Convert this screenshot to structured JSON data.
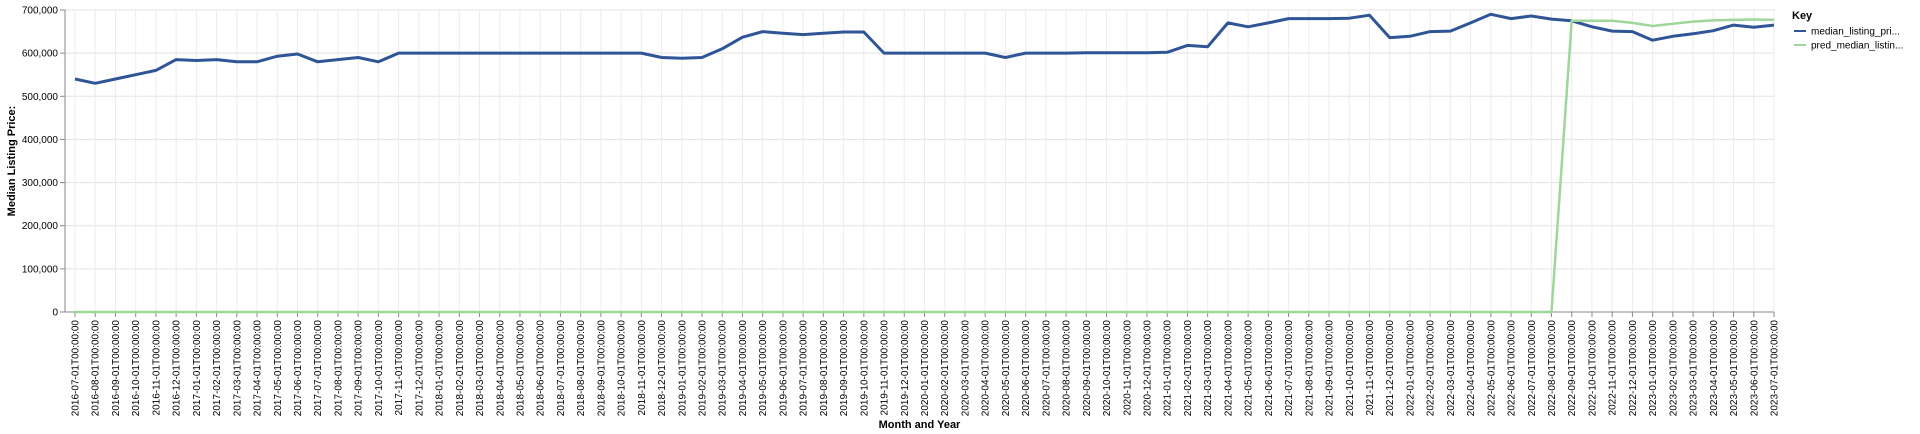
{
  "chart_data": {
    "type": "line",
    "xlabel": "Month and Year",
    "ylabel": "Median Listing Price:",
    "ylim": [
      0,
      700000
    ],
    "yticks": [
      0,
      100000,
      200000,
      300000,
      400000,
      500000,
      600000,
      700000
    ],
    "ytick_labels": [
      "0",
      "100,000",
      "200,000",
      "300,000",
      "400,000",
      "500,000",
      "600,000",
      "700,000"
    ],
    "grid": true,
    "legend": {
      "title": "Key",
      "placement": "top-right"
    },
    "x": [
      "2016-07-01T00:00:00",
      "2016-08-01T00:00:00",
      "2016-09-01T00:00:00",
      "2016-10-01T00:00:00",
      "2016-11-01T00:00:00",
      "2016-12-01T00:00:00",
      "2017-01-01T00:00:00",
      "2017-02-01T00:00:00",
      "2017-03-01T00:00:00",
      "2017-04-01T00:00:00",
      "2017-05-01T00:00:00",
      "2017-06-01T00:00:00",
      "2017-07-01T00:00:00",
      "2017-08-01T00:00:00",
      "2017-09-01T00:00:00",
      "2017-10-01T00:00:00",
      "2017-11-01T00:00:00",
      "2017-12-01T00:00:00",
      "2018-01-01T00:00:00",
      "2018-02-01T00:00:00",
      "2018-03-01T00:00:00",
      "2018-04-01T00:00:00",
      "2018-05-01T00:00:00",
      "2018-06-01T00:00:00",
      "2018-07-01T00:00:00",
      "2018-08-01T00:00:00",
      "2018-09-01T00:00:00",
      "2018-10-01T00:00:00",
      "2018-11-01T00:00:00",
      "2018-12-01T00:00:00",
      "2019-01-01T00:00:00",
      "2019-02-01T00:00:00",
      "2019-03-01T00:00:00",
      "2019-04-01T00:00:00",
      "2019-05-01T00:00:00",
      "2019-06-01T00:00:00",
      "2019-07-01T00:00:00",
      "2019-08-01T00:00:00",
      "2019-09-01T00:00:00",
      "2019-10-01T00:00:00",
      "2019-11-01T00:00:00",
      "2019-12-01T00:00:00",
      "2020-01-01T00:00:00",
      "2020-02-01T00:00:00",
      "2020-03-01T00:00:00",
      "2020-04-01T00:00:00",
      "2020-05-01T00:00:00",
      "2020-06-01T00:00:00",
      "2020-07-01T00:00:00",
      "2020-08-01T00:00:00",
      "2020-09-01T00:00:00",
      "2020-10-01T00:00:00",
      "2020-11-01T00:00:00",
      "2020-12-01T00:00:00",
      "2021-01-01T00:00:00",
      "2021-02-01T00:00:00",
      "2021-03-01T00:00:00",
      "2021-04-01T00:00:00",
      "2021-05-01T00:00:00",
      "2021-06-01T00:00:00",
      "2021-07-01T00:00:00",
      "2021-08-01T00:00:00",
      "2021-09-01T00:00:00",
      "2021-10-01T00:00:00",
      "2021-11-01T00:00:00",
      "2021-12-01T00:00:00",
      "2022-01-01T00:00:00",
      "2022-02-01T00:00:00",
      "2022-03-01T00:00:00",
      "2022-04-01T00:00:00",
      "2022-05-01T00:00:00",
      "2022-06-01T00:00:00",
      "2022-07-01T00:00:00",
      "2022-08-01T00:00:00",
      "2022-09-01T00:00:00",
      "2022-10-01T00:00:00",
      "2022-11-01T00:00:00",
      "2022-12-01T00:00:00",
      "2023-01-01T00:00:00",
      "2023-02-01T00:00:00",
      "2023-03-01T00:00:00",
      "2023-04-01T00:00:00",
      "2023-05-01T00:00:00",
      "2023-06-01T00:00:00",
      "2023-07-01T00:00:00"
    ],
    "series": [
      {
        "name": "median_listing_pri...",
        "color": "#2f5597",
        "values": [
          540000,
          530000,
          540000,
          550000,
          560000,
          585000,
          583000,
          585000,
          580000,
          580000,
          593000,
          598000,
          580000,
          585000,
          590000,
          580000,
          600000,
          600000,
          600000,
          600000,
          600000,
          600000,
          600000,
          600000,
          600000,
          600000,
          600000,
          600000,
          600000,
          590000,
          588000,
          590000,
          610000,
          637000,
          650000,
          646000,
          643000,
          646000,
          649000,
          649000,
          600000,
          600000,
          600000,
          600000,
          600000,
          600000,
          590000,
          600000,
          600000,
          600000,
          601000,
          601000,
          601000,
          601000,
          602000,
          618000,
          615000,
          670000,
          661000,
          670000,
          680000,
          680000,
          680000,
          681000,
          688000,
          636000,
          639000,
          650000,
          651000,
          670000,
          690000,
          680000,
          686000,
          679000,
          675000,
          661000,
          651000,
          650000,
          630000,
          639000,
          645000,
          652000,
          665000,
          660000,
          665000
        ]
      },
      {
        "name": "pred_median_listin...",
        "color": "#9fd79a",
        "values": [
          0,
          0,
          0,
          0,
          0,
          0,
          0,
          0,
          0,
          0,
          0,
          0,
          0,
          0,
          0,
          0,
          0,
          0,
          0,
          0,
          0,
          0,
          0,
          0,
          0,
          0,
          0,
          0,
          0,
          0,
          0,
          0,
          0,
          0,
          0,
          0,
          0,
          0,
          0,
          0,
          0,
          0,
          0,
          0,
          0,
          0,
          0,
          0,
          0,
          0,
          0,
          0,
          0,
          0,
          0,
          0,
          0,
          0,
          0,
          0,
          0,
          0,
          0,
          0,
          0,
          0,
          0,
          0,
          0,
          0,
          0,
          0,
          0,
          0,
          675000,
          675000,
          675000,
          670000,
          663000,
          668000,
          673000,
          676000,
          677000,
          678000,
          677000
        ]
      }
    ]
  }
}
